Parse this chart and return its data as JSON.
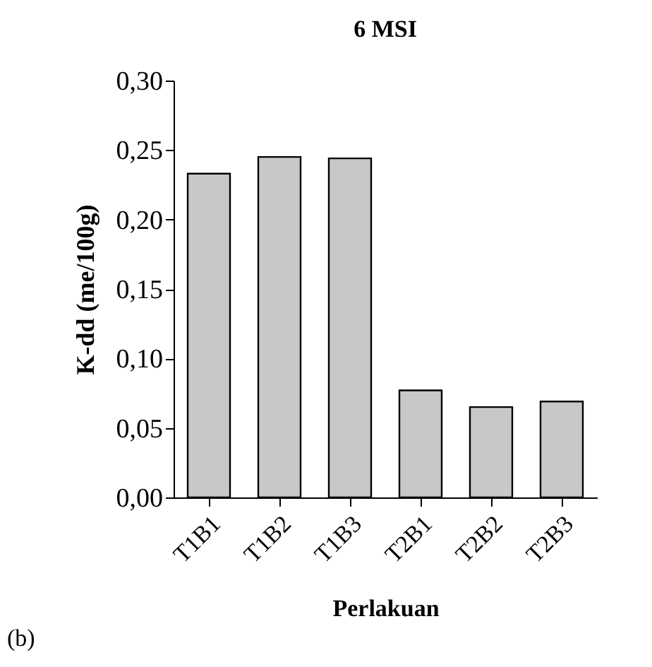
{
  "chart_data": {
    "type": "bar",
    "title": "6 MSI",
    "xlabel": "Perlakuan",
    "ylabel": "K-dd (me/100g)",
    "categories": [
      "T1B1",
      "T1B2",
      "T1B3",
      "T2B1",
      "T2B2",
      "T2B3"
    ],
    "values": [
      0.233,
      0.245,
      0.244,
      0.077,
      0.065,
      0.069
    ],
    "color": "#c8c8c8",
    "ylim": [
      0,
      0.3
    ],
    "yticks": [
      {
        "value": 0,
        "label": "0,00"
      },
      {
        "value": 0.05,
        "label": "0,05"
      },
      {
        "value": 0.1,
        "label": "0,10"
      },
      {
        "value": 0.15,
        "label": "0,15"
      },
      {
        "value": 0.2,
        "label": "0,20"
      },
      {
        "value": 0.25,
        "label": "0,25"
      },
      {
        "value": 0.3,
        "label": "0,30"
      }
    ],
    "grid": false,
    "annotations": [
      "(b)"
    ]
  }
}
